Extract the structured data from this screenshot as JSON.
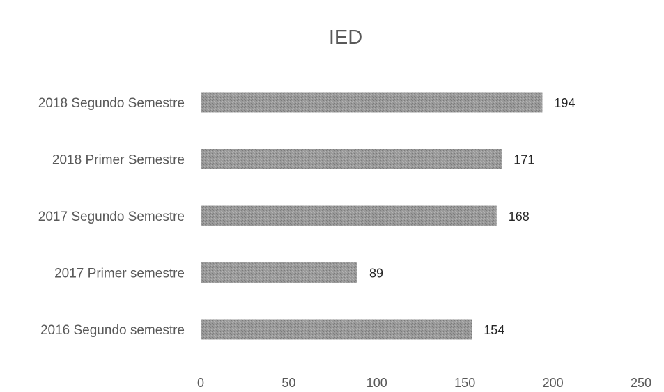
{
  "chart_data": {
    "type": "bar",
    "orientation": "horizontal",
    "title": "IED",
    "xlabel": "",
    "ylabel": "",
    "categories": [
      "2018 Segundo Semestre",
      "2018 Primer Semestre",
      "2017 Segundo Semestre",
      "2017 Primer semestre",
      "2016 Segundo semestre"
    ],
    "values": [
      194,
      171,
      168,
      89,
      154
    ],
    "data_labels": [
      "194",
      "171",
      "168",
      "89",
      "154"
    ],
    "xlim": [
      0,
      250
    ],
    "x_ticks": [
      0,
      50,
      100,
      150,
      200,
      250
    ],
    "x_tick_labels": [
      "0",
      "50",
      "100",
      "150",
      "200",
      "250"
    ],
    "grid": false,
    "legend": "none",
    "bar_color": "#8f8f8f"
  }
}
